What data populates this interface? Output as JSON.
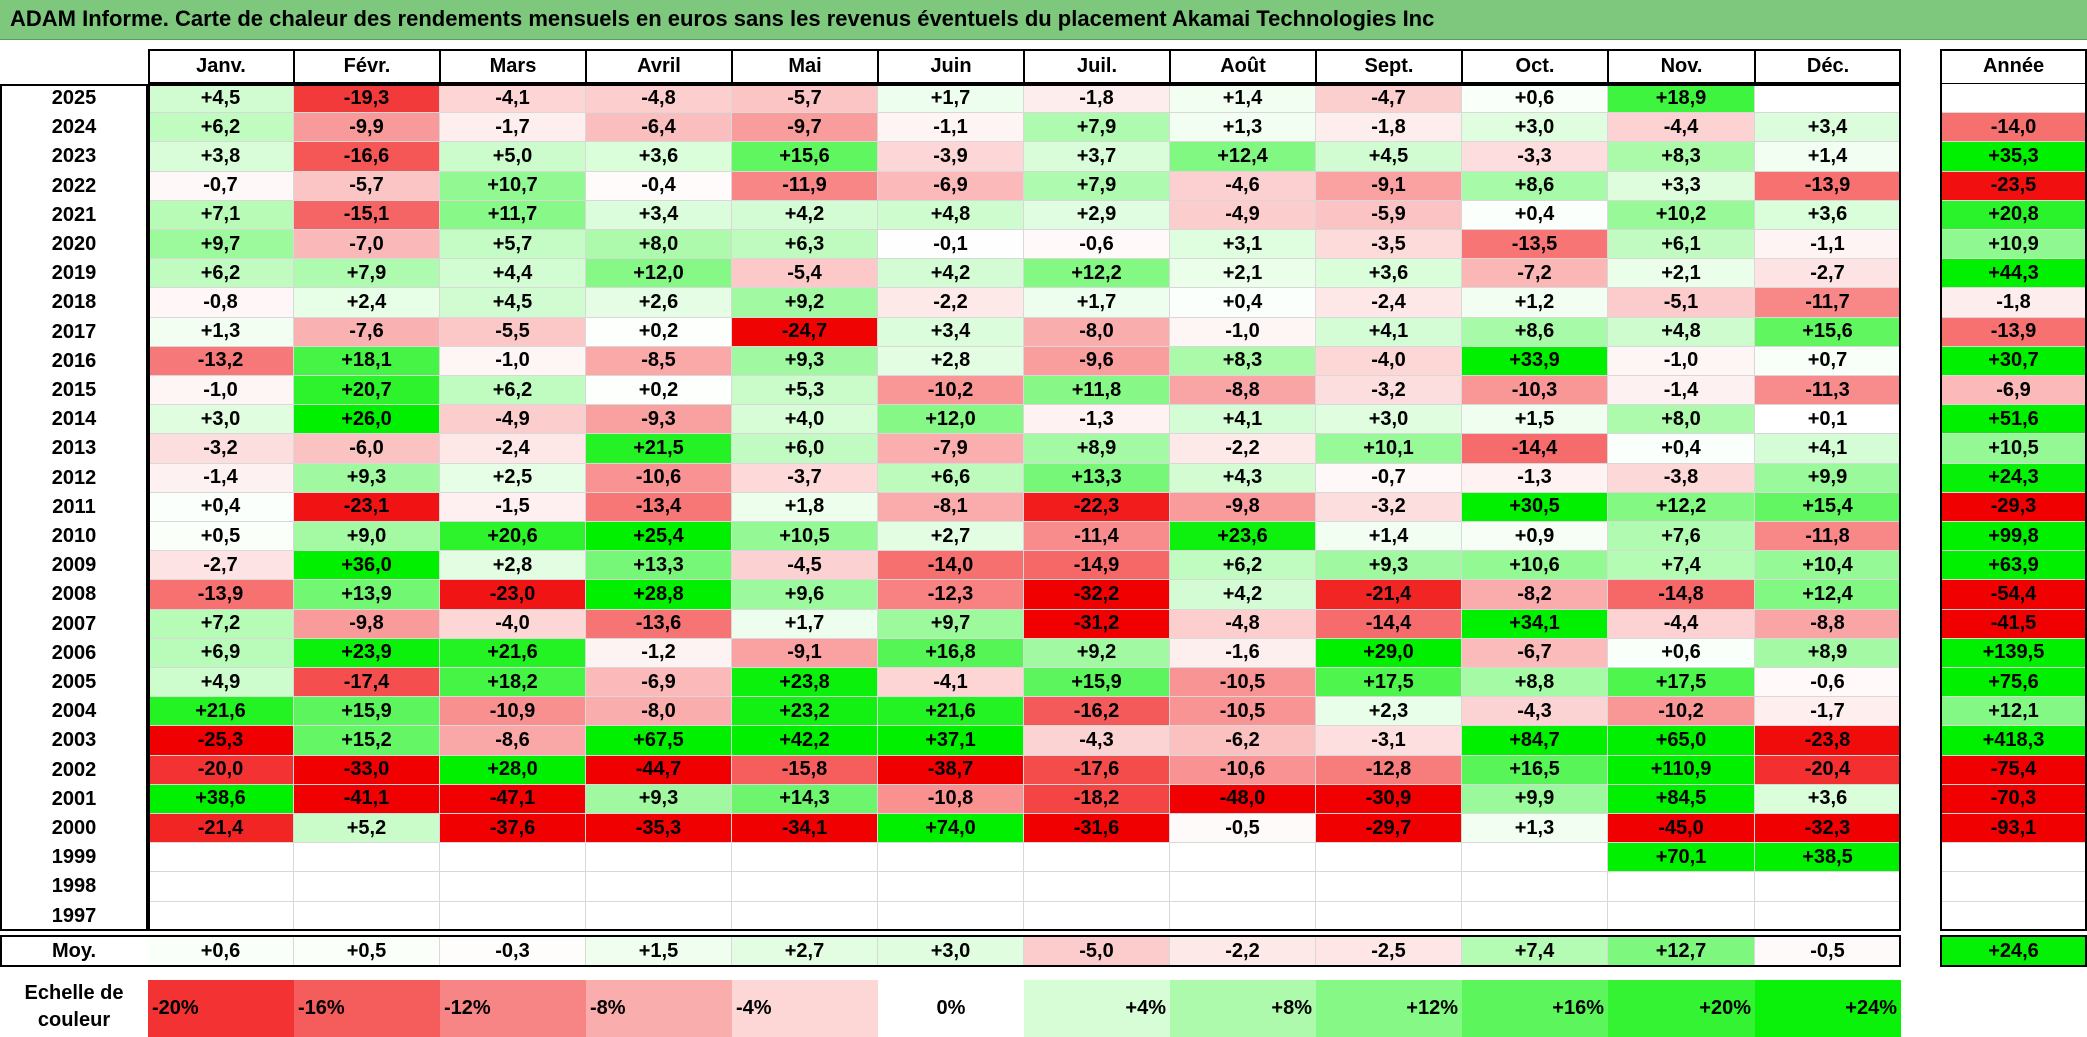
{
  "title": "ADAM Informe. Carte de chaleur des rendements mensuels en euros sans les revenus éventuels du placement Akamai Technologies Inc",
  "chart_data": {
    "type": "heatmap",
    "columns": [
      "Janv.",
      "Févr.",
      "Mars",
      "Avril",
      "Mai",
      "Juin",
      "Juil.",
      "Août",
      "Sept.",
      "Oct.",
      "Nov.",
      "Déc."
    ],
    "annual_header": "Année",
    "rows": [
      {
        "year": "2025",
        "values": [
          "+4,5",
          "-19,3",
          "-4,1",
          "-4,8",
          "-5,7",
          "+1,7",
          "-1,8",
          "+1,4",
          "-4,7",
          "+0,6",
          "+18,9",
          ""
        ],
        "annual": ""
      },
      {
        "year": "2024",
        "values": [
          "+6,2",
          "-9,9",
          "-1,7",
          "-6,4",
          "-9,7",
          "-1,1",
          "+7,9",
          "+1,3",
          "-1,8",
          "+3,0",
          "-4,4",
          "+3,4"
        ],
        "annual": "-14,0"
      },
      {
        "year": "2023",
        "values": [
          "+3,8",
          "-16,6",
          "+5,0",
          "+3,6",
          "+15,6",
          "-3,9",
          "+3,7",
          "+12,4",
          "+4,5",
          "-3,3",
          "+8,3",
          "+1,4"
        ],
        "annual": "+35,3"
      },
      {
        "year": "2022",
        "values": [
          "-0,7",
          "-5,7",
          "+10,7",
          "-0,4",
          "-11,9",
          "-6,9",
          "+7,9",
          "-4,6",
          "-9,1",
          "+8,6",
          "+3,3",
          "-13,9"
        ],
        "annual": "-23,5"
      },
      {
        "year": "2021",
        "values": [
          "+7,1",
          "-15,1",
          "+11,7",
          "+3,4",
          "+4,2",
          "+4,8",
          "+2,9",
          "-4,9",
          "-5,9",
          "+0,4",
          "+10,2",
          "+3,6"
        ],
        "annual": "+20,8"
      },
      {
        "year": "2020",
        "values": [
          "+9,7",
          "-7,0",
          "+5,7",
          "+8,0",
          "+6,3",
          "-0,1",
          "-0,6",
          "+3,1",
          "-3,5",
          "-13,5",
          "+6,1",
          "-1,1"
        ],
        "annual": "+10,9"
      },
      {
        "year": "2019",
        "values": [
          "+6,2",
          "+7,9",
          "+4,4",
          "+12,0",
          "-5,4",
          "+4,2",
          "+12,2",
          "+2,1",
          "+3,6",
          "-7,2",
          "+2,1",
          "-2,7"
        ],
        "annual": "+44,3"
      },
      {
        "year": "2018",
        "values": [
          "-0,8",
          "+2,4",
          "+4,5",
          "+2,6",
          "+9,2",
          "-2,2",
          "+1,7",
          "+0,4",
          "-2,4",
          "+1,2",
          "-5,1",
          "-11,7"
        ],
        "annual": "-1,8"
      },
      {
        "year": "2017",
        "values": [
          "+1,3",
          "-7,6",
          "-5,5",
          "+0,2",
          "-24,7",
          "+3,4",
          "-8,0",
          "-1,0",
          "+4,1",
          "+8,6",
          "+4,8",
          "+15,6"
        ],
        "annual": "-13,9"
      },
      {
        "year": "2016",
        "values": [
          "-13,2",
          "+18,1",
          "-1,0",
          "-8,5",
          "+9,3",
          "+2,8",
          "-9,6",
          "+8,3",
          "-4,0",
          "+33,9",
          "-1,0",
          "+0,7"
        ],
        "annual": "+30,7"
      },
      {
        "year": "2015",
        "values": [
          "-1,0",
          "+20,7",
          "+6,2",
          "+0,2",
          "+5,3",
          "-10,2",
          "+11,8",
          "-8,8",
          "-3,2",
          "-10,3",
          "-1,4",
          "-11,3"
        ],
        "annual": "-6,9"
      },
      {
        "year": "2014",
        "values": [
          "+3,0",
          "+26,0",
          "-4,9",
          "-9,3",
          "+4,0",
          "+12,0",
          "-1,3",
          "+4,1",
          "+3,0",
          "+1,5",
          "+8,0",
          "+0,1"
        ],
        "annual": "+51,6"
      },
      {
        "year": "2013",
        "values": [
          "-3,2",
          "-6,0",
          "-2,4",
          "+21,5",
          "+6,0",
          "-7,9",
          "+8,9",
          "-2,2",
          "+10,1",
          "-14,4",
          "+0,4",
          "+4,1"
        ],
        "annual": "+10,5"
      },
      {
        "year": "2012",
        "values": [
          "-1,4",
          "+9,3",
          "+2,5",
          "-10,6",
          "-3,7",
          "+6,6",
          "+13,3",
          "+4,3",
          "-0,7",
          "-1,3",
          "-3,8",
          "+9,9"
        ],
        "annual": "+24,3"
      },
      {
        "year": "2011",
        "values": [
          "+0,4",
          "-23,1",
          "-1,5",
          "-13,4",
          "+1,8",
          "-8,1",
          "-22,3",
          "-9,8",
          "-3,2",
          "+30,5",
          "+12,2",
          "+15,4"
        ],
        "annual": "-29,3"
      },
      {
        "year": "2010",
        "values": [
          "+0,5",
          "+9,0",
          "+20,6",
          "+25,4",
          "+10,5",
          "+2,7",
          "-11,4",
          "+23,6",
          "+1,4",
          "+0,9",
          "+7,6",
          "-11,8"
        ],
        "annual": "+99,8"
      },
      {
        "year": "2009",
        "values": [
          "-2,7",
          "+36,0",
          "+2,8",
          "+13,3",
          "-4,5",
          "-14,0",
          "-14,9",
          "+6,2",
          "+9,3",
          "+10,6",
          "+7,4",
          "+10,4"
        ],
        "annual": "+63,9"
      },
      {
        "year": "2008",
        "values": [
          "-13,9",
          "+13,9",
          "-23,0",
          "+28,8",
          "+9,6",
          "-12,3",
          "-32,2",
          "+4,2",
          "-21,4",
          "-8,2",
          "-14,8",
          "+12,4"
        ],
        "annual": "-54,4"
      },
      {
        "year": "2007",
        "values": [
          "+7,2",
          "-9,8",
          "-4,0",
          "-13,6",
          "+1,7",
          "+9,7",
          "-31,2",
          "-4,8",
          "-14,4",
          "+34,1",
          "-4,4",
          "-8,8"
        ],
        "annual": "-41,5"
      },
      {
        "year": "2006",
        "values": [
          "+6,9",
          "+23,9",
          "+21,6",
          "-1,2",
          "-9,1",
          "+16,8",
          "+9,2",
          "-1,6",
          "+29,0",
          "-6,7",
          "+0,6",
          "+8,9"
        ],
        "annual": "+139,5"
      },
      {
        "year": "2005",
        "values": [
          "+4,9",
          "-17,4",
          "+18,2",
          "-6,9",
          "+23,8",
          "-4,1",
          "+15,9",
          "-10,5",
          "+17,5",
          "+8,8",
          "+17,5",
          "-0,6"
        ],
        "annual": "+75,6"
      },
      {
        "year": "2004",
        "values": [
          "+21,6",
          "+15,9",
          "-10,9",
          "-8,0",
          "+23,2",
          "+21,6",
          "-16,2",
          "-10,5",
          "+2,3",
          "-4,3",
          "-10,2",
          "-1,7"
        ],
        "annual": "+12,1"
      },
      {
        "year": "2003",
        "values": [
          "-25,3",
          "+15,2",
          "-8,6",
          "+67,5",
          "+42,2",
          "+37,1",
          "-4,3",
          "-6,2",
          "-3,1",
          "+84,7",
          "+65,0",
          "-23,8"
        ],
        "annual": "+418,3"
      },
      {
        "year": "2002",
        "values": [
          "-20,0",
          "-33,0",
          "+28,0",
          "-44,7",
          "-15,8",
          "-38,7",
          "-17,6",
          "-10,6",
          "-12,8",
          "+16,5",
          "+110,9",
          "-20,4"
        ],
        "annual": "-75,4"
      },
      {
        "year": "2001",
        "values": [
          "+38,6",
          "-41,1",
          "-47,1",
          "+9,3",
          "+14,3",
          "-10,8",
          "-18,2",
          "-48,0",
          "-30,9",
          "+9,9",
          "+84,5",
          "+3,6"
        ],
        "annual": "-70,3"
      },
      {
        "year": "2000",
        "values": [
          "-21,4",
          "+5,2",
          "-37,6",
          "-35,3",
          "-34,1",
          "+74,0",
          "-31,6",
          "-0,5",
          "-29,7",
          "+1,3",
          "-45,0",
          "-32,3"
        ],
        "annual": "-93,1"
      },
      {
        "year": "1999",
        "values": [
          "",
          "",
          "",
          "",
          "",
          "",
          "",
          "",
          "",
          "",
          "+70,1",
          "+38,5"
        ],
        "annual": ""
      },
      {
        "year": "1998",
        "values": [
          "",
          "",
          "",
          "",
          "",
          "",
          "",
          "",
          "",
          "",
          "",
          ""
        ],
        "annual": ""
      },
      {
        "year": "1997",
        "values": [
          "",
          "",
          "",
          "",
          "",
          "",
          "",
          "",
          "",
          "",
          "",
          ""
        ],
        "annual": ""
      }
    ],
    "average": {
      "label": "Moy.",
      "values": [
        "+0,6",
        "+0,5",
        "-0,3",
        "+1,5",
        "+2,7",
        "+3,0",
        "-5,0",
        "-2,2",
        "-2,5",
        "+7,4",
        "+12,7",
        "-0,5"
      ],
      "annual": "+24,6"
    },
    "legend": {
      "label": "Echelle de couleur",
      "steps": [
        "-20%",
        "-16%",
        "-12%",
        "-8%",
        "-4%",
        "0%",
        "+4%",
        "+8%",
        "+12%",
        "+16%",
        "+20%",
        "+24%"
      ]
    }
  }
}
